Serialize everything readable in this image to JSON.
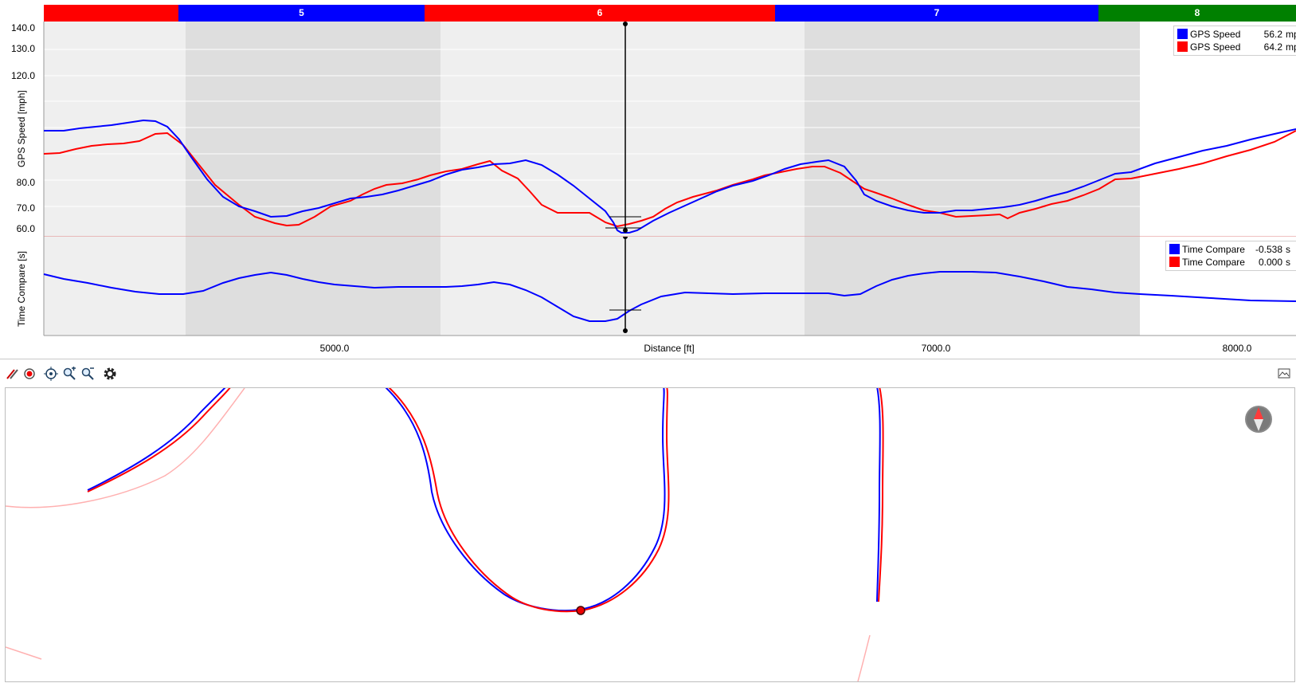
{
  "sectors": [
    {
      "label": "",
      "color": "#ff0000"
    },
    {
      "label": "5",
      "color": "#0000ff"
    },
    {
      "label": "6",
      "color": "#ff0000"
    },
    {
      "label": "7",
      "color": "#0000ff"
    },
    {
      "label": "8",
      "color": "#008000"
    }
  ],
  "speed_chart": {
    "ylabel": "GPS Speed [mph]",
    "yticks": [
      "140.0",
      "130.0",
      "120.0",
      "80.0",
      "70.0",
      "60.0"
    ],
    "legend": [
      {
        "name": "GPS Speed",
        "value": "56.2",
        "unit": "mph",
        "color": "#0000ff"
      },
      {
        "name": "GPS Speed",
        "value": "64.2",
        "unit": "mph",
        "color": "#ff0000"
      }
    ]
  },
  "time_chart": {
    "ylabel": "Time Compare [s]",
    "legend": [
      {
        "name": "Time Compare",
        "value": "-0.538",
        "unit": "s",
        "color": "#0000ff"
      },
      {
        "name": "Time Compare",
        "value": "0.000",
        "unit": "s",
        "color": "#ff0000"
      }
    ]
  },
  "x_axis": {
    "label": "Distance [ft]",
    "ticks": [
      "5000.0",
      "7000.0",
      "8000.0"
    ]
  },
  "toolbar": {
    "tools": [
      "pen-icon",
      "record-icon",
      "target-icon",
      "zoom-in-icon",
      "zoom-out-icon",
      "gear-icon"
    ]
  },
  "colors": {
    "lap_a": "#0000ff",
    "lap_b": "#ff0000",
    "band_light": "#efefef",
    "band_dark": "#dedede"
  }
}
